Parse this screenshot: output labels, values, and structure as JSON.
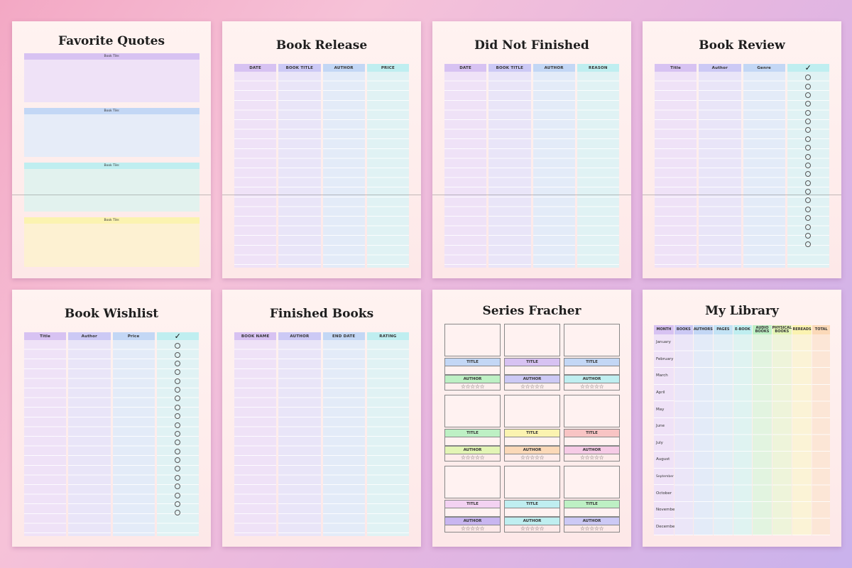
{
  "pages": {
    "quotes": {
      "title": "Favorite Quotes",
      "block_label": "Book Tile:"
    },
    "release": {
      "title": "Book Release",
      "columns": [
        "DATE",
        "BOOK TITLE",
        "AUTHOR",
        "PRICE"
      ]
    },
    "dnf": {
      "title": "Did Not Finished",
      "columns": [
        "DATE",
        "BOOK TITLE",
        "AUTHOR",
        "REASON"
      ]
    },
    "review": {
      "title": "Book Review",
      "columns": [
        "Title",
        "Author",
        "Genre"
      ],
      "check_header": "✓"
    },
    "wishlist": {
      "title": "Book Wishlist",
      "columns": [
        "Title",
        "Author",
        "Price"
      ],
      "check_header": "✓"
    },
    "finished": {
      "title": "Finished Books",
      "columns": [
        "BOOK NAME",
        "AUTHOR",
        "END DATE",
        "RATING"
      ]
    },
    "series": {
      "title": "Series Fracher",
      "title_label": "TITLE",
      "author_label": "AUTHOR",
      "stars": "☆☆☆☆☆"
    },
    "library": {
      "title": "My Library",
      "columns": [
        "MONTH",
        "BOOKS",
        "AUTHORS",
        "PAGES",
        "E-BOOK",
        "AUDIO BOOKS",
        "PHYSICAL BOOKS",
        "REREADS",
        "TOTAL"
      ],
      "months": [
        "January",
        "February",
        "March",
        "April",
        "May",
        "June",
        "July",
        "August",
        "September",
        "October",
        "November",
        "December"
      ]
    }
  },
  "colors": {
    "purple": "#d7c2f2",
    "lavender": "#ccc9f5",
    "blue": "#c3d7f5",
    "cyan": "#bfeef0",
    "green": "#bdf0c4",
    "yellow": "#fbf3b0",
    "orange": "#fbd9b8",
    "pink": "#f6cbe6",
    "red": "#f8c4c4"
  }
}
